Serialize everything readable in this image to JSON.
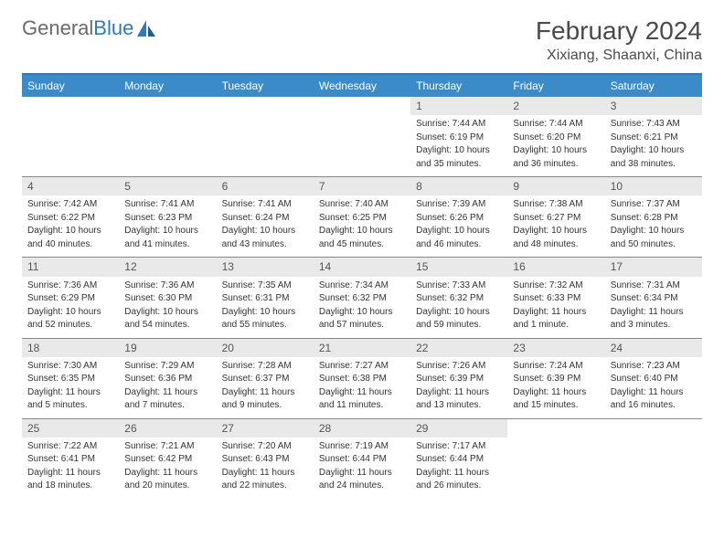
{
  "logo": {
    "text1": "General",
    "text2": "Blue"
  },
  "title": "February 2024",
  "location": "Xixiang, Shaanxi, China",
  "theme": {
    "header_bg": "#3b8bc9",
    "header_border": "#2b7bbf",
    "daynum_bg": "#e9e9e9",
    "text_color": "#333333",
    "logo_gray": "#6a6a6a",
    "logo_blue": "#2b7bbf"
  },
  "day_names": [
    "Sunday",
    "Monday",
    "Tuesday",
    "Wednesday",
    "Thursday",
    "Friday",
    "Saturday"
  ],
  "weeks": [
    [
      null,
      null,
      null,
      null,
      {
        "n": "1",
        "sr": "Sunrise: 7:44 AM",
        "ss": "Sunset: 6:19 PM",
        "d1": "Daylight: 10 hours",
        "d2": "and 35 minutes."
      },
      {
        "n": "2",
        "sr": "Sunrise: 7:44 AM",
        "ss": "Sunset: 6:20 PM",
        "d1": "Daylight: 10 hours",
        "d2": "and 36 minutes."
      },
      {
        "n": "3",
        "sr": "Sunrise: 7:43 AM",
        "ss": "Sunset: 6:21 PM",
        "d1": "Daylight: 10 hours",
        "d2": "and 38 minutes."
      }
    ],
    [
      {
        "n": "4",
        "sr": "Sunrise: 7:42 AM",
        "ss": "Sunset: 6:22 PM",
        "d1": "Daylight: 10 hours",
        "d2": "and 40 minutes."
      },
      {
        "n": "5",
        "sr": "Sunrise: 7:41 AM",
        "ss": "Sunset: 6:23 PM",
        "d1": "Daylight: 10 hours",
        "d2": "and 41 minutes."
      },
      {
        "n": "6",
        "sr": "Sunrise: 7:41 AM",
        "ss": "Sunset: 6:24 PM",
        "d1": "Daylight: 10 hours",
        "d2": "and 43 minutes."
      },
      {
        "n": "7",
        "sr": "Sunrise: 7:40 AM",
        "ss": "Sunset: 6:25 PM",
        "d1": "Daylight: 10 hours",
        "d2": "and 45 minutes."
      },
      {
        "n": "8",
        "sr": "Sunrise: 7:39 AM",
        "ss": "Sunset: 6:26 PM",
        "d1": "Daylight: 10 hours",
        "d2": "and 46 minutes."
      },
      {
        "n": "9",
        "sr": "Sunrise: 7:38 AM",
        "ss": "Sunset: 6:27 PM",
        "d1": "Daylight: 10 hours",
        "d2": "and 48 minutes."
      },
      {
        "n": "10",
        "sr": "Sunrise: 7:37 AM",
        "ss": "Sunset: 6:28 PM",
        "d1": "Daylight: 10 hours",
        "d2": "and 50 minutes."
      }
    ],
    [
      {
        "n": "11",
        "sr": "Sunrise: 7:36 AM",
        "ss": "Sunset: 6:29 PM",
        "d1": "Daylight: 10 hours",
        "d2": "and 52 minutes."
      },
      {
        "n": "12",
        "sr": "Sunrise: 7:36 AM",
        "ss": "Sunset: 6:30 PM",
        "d1": "Daylight: 10 hours",
        "d2": "and 54 minutes."
      },
      {
        "n": "13",
        "sr": "Sunrise: 7:35 AM",
        "ss": "Sunset: 6:31 PM",
        "d1": "Daylight: 10 hours",
        "d2": "and 55 minutes."
      },
      {
        "n": "14",
        "sr": "Sunrise: 7:34 AM",
        "ss": "Sunset: 6:32 PM",
        "d1": "Daylight: 10 hours",
        "d2": "and 57 minutes."
      },
      {
        "n": "15",
        "sr": "Sunrise: 7:33 AM",
        "ss": "Sunset: 6:32 PM",
        "d1": "Daylight: 10 hours",
        "d2": "and 59 minutes."
      },
      {
        "n": "16",
        "sr": "Sunrise: 7:32 AM",
        "ss": "Sunset: 6:33 PM",
        "d1": "Daylight: 11 hours",
        "d2": "and 1 minute."
      },
      {
        "n": "17",
        "sr": "Sunrise: 7:31 AM",
        "ss": "Sunset: 6:34 PM",
        "d1": "Daylight: 11 hours",
        "d2": "and 3 minutes."
      }
    ],
    [
      {
        "n": "18",
        "sr": "Sunrise: 7:30 AM",
        "ss": "Sunset: 6:35 PM",
        "d1": "Daylight: 11 hours",
        "d2": "and 5 minutes."
      },
      {
        "n": "19",
        "sr": "Sunrise: 7:29 AM",
        "ss": "Sunset: 6:36 PM",
        "d1": "Daylight: 11 hours",
        "d2": "and 7 minutes."
      },
      {
        "n": "20",
        "sr": "Sunrise: 7:28 AM",
        "ss": "Sunset: 6:37 PM",
        "d1": "Daylight: 11 hours",
        "d2": "and 9 minutes."
      },
      {
        "n": "21",
        "sr": "Sunrise: 7:27 AM",
        "ss": "Sunset: 6:38 PM",
        "d1": "Daylight: 11 hours",
        "d2": "and 11 minutes."
      },
      {
        "n": "22",
        "sr": "Sunrise: 7:26 AM",
        "ss": "Sunset: 6:39 PM",
        "d1": "Daylight: 11 hours",
        "d2": "and 13 minutes."
      },
      {
        "n": "23",
        "sr": "Sunrise: 7:24 AM",
        "ss": "Sunset: 6:39 PM",
        "d1": "Daylight: 11 hours",
        "d2": "and 15 minutes."
      },
      {
        "n": "24",
        "sr": "Sunrise: 7:23 AM",
        "ss": "Sunset: 6:40 PM",
        "d1": "Daylight: 11 hours",
        "d2": "and 16 minutes."
      }
    ],
    [
      {
        "n": "25",
        "sr": "Sunrise: 7:22 AM",
        "ss": "Sunset: 6:41 PM",
        "d1": "Daylight: 11 hours",
        "d2": "and 18 minutes."
      },
      {
        "n": "26",
        "sr": "Sunrise: 7:21 AM",
        "ss": "Sunset: 6:42 PM",
        "d1": "Daylight: 11 hours",
        "d2": "and 20 minutes."
      },
      {
        "n": "27",
        "sr": "Sunrise: 7:20 AM",
        "ss": "Sunset: 6:43 PM",
        "d1": "Daylight: 11 hours",
        "d2": "and 22 minutes."
      },
      {
        "n": "28",
        "sr": "Sunrise: 7:19 AM",
        "ss": "Sunset: 6:44 PM",
        "d1": "Daylight: 11 hours",
        "d2": "and 24 minutes."
      },
      {
        "n": "29",
        "sr": "Sunrise: 7:17 AM",
        "ss": "Sunset: 6:44 PM",
        "d1": "Daylight: 11 hours",
        "d2": "and 26 minutes."
      },
      null,
      null
    ]
  ]
}
